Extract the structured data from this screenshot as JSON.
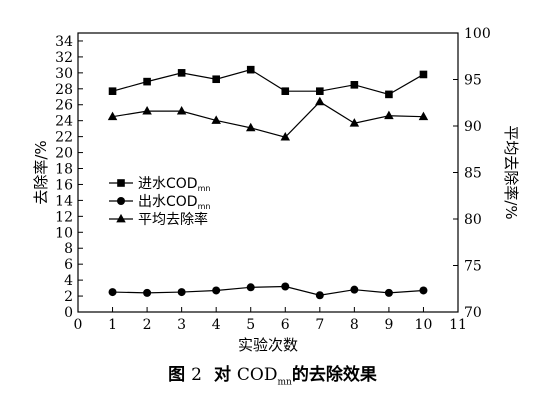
{
  "chart_data": {
    "type": "line",
    "xlabel": "实验次数",
    "ylabel_left": "去除率/%",
    "ylabel_right": "平均去除率/%",
    "x": [
      1,
      2,
      3,
      4,
      5,
      6,
      7,
      8,
      9,
      10
    ],
    "x_ticks": [
      0,
      1,
      2,
      3,
      4,
      5,
      6,
      7,
      8,
      9,
      10,
      11
    ],
    "xlim": [
      0,
      11
    ],
    "ylim_left": [
      0,
      35
    ],
    "y_ticks_left": [
      0,
      2,
      4,
      6,
      8,
      10,
      12,
      14,
      16,
      18,
      20,
      22,
      24,
      26,
      28,
      30,
      32,
      34
    ],
    "ylim_right": [
      70,
      100
    ],
    "y_ticks_right": [
      70,
      75,
      80,
      85,
      90,
      95,
      100
    ],
    "grid": false,
    "legend_position": "middle-left",
    "series": [
      {
        "legend_text": "进水COD",
        "legend_sub": "mn",
        "marker": "square",
        "axis": "left",
        "values": [
          27.7,
          28.9,
          30.0,
          29.2,
          30.4,
          27.7,
          27.7,
          28.5,
          27.3,
          29.8
        ]
      },
      {
        "legend_text": "出水COD",
        "legend_sub": "mn",
        "marker": "circle",
        "axis": "left",
        "values": [
          2.5,
          2.4,
          2.5,
          2.7,
          3.1,
          3.2,
          2.1,
          2.8,
          2.4,
          2.7
        ]
      },
      {
        "legend_text": "平均去除率",
        "legend_sub": "",
        "marker": "triangle",
        "axis": "right",
        "values": [
          91.0,
          91.6,
          91.6,
          90.6,
          89.8,
          88.8,
          92.6,
          90.3,
          91.1,
          91.0
        ]
      }
    ]
  },
  "caption": {
    "prefix": "图",
    "number": "2",
    "text_before": "对",
    "cod": "COD",
    "cod_sub": "mn",
    "text_after": "的去除效果"
  }
}
